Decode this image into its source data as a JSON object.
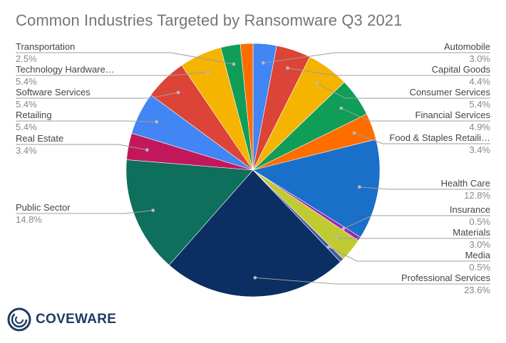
{
  "chart_data": {
    "type": "pie",
    "title": "Common Industries Targeted by Ransomware Q3 2021",
    "slices": [
      {
        "label": "Automobile",
        "value": 3.0,
        "display": "3.0%",
        "color": "#4285f4"
      },
      {
        "label": "Capital Goods",
        "value": 4.4,
        "display": "4.4%",
        "color": "#db4437"
      },
      {
        "label": "Consumer Services",
        "value": 5.4,
        "display": "5.4%",
        "color": "#f4b400"
      },
      {
        "label": "Financial Services",
        "value": 4.9,
        "display": "4.9%",
        "color": "#0f9d58"
      },
      {
        "label": "Food & Staples Retaili…",
        "value": 3.4,
        "display": "3.4%",
        "color": "#ff6d00"
      },
      {
        "label": "Health Care",
        "value": 12.8,
        "display": "12.8%",
        "color": "#1a6fc9"
      },
      {
        "label": "Insurance",
        "value": 0.5,
        "display": "0.5%",
        "color": "#9c27b0"
      },
      {
        "label": "Materials",
        "value": 3.0,
        "display": "3.0%",
        "color": "#c0ca33"
      },
      {
        "label": "Media",
        "value": 0.5,
        "display": "0.5%",
        "color": "#3f5ba9"
      },
      {
        "label": "Professional Services",
        "value": 23.6,
        "display": "23.6%",
        "color": "#0b2e63"
      },
      {
        "label": "Public Sector",
        "value": 14.8,
        "display": "14.8%",
        "color": "#0e6f5c"
      },
      {
        "label": "Real Estate",
        "value": 3.4,
        "display": "3.4%",
        "color": "#c2185b"
      },
      {
        "label": "Retailing",
        "value": 5.4,
        "display": "5.4%",
        "color": "#4285f4"
      },
      {
        "label": "Software Services",
        "value": 5.4,
        "display": "5.4%",
        "color": "#db4437"
      },
      {
        "label": "Technology Hardware…",
        "value": 5.4,
        "display": "5.4%",
        "color": "#f4b400"
      },
      {
        "label": "Transportation",
        "value": 2.5,
        "display": "2.5%",
        "color": "#0f9d58"
      },
      {
        "label": "",
        "value": 1.6,
        "display": "",
        "color": "#ff6d00"
      }
    ],
    "legend": "none"
  },
  "logo": {
    "text": "COVEWARE",
    "color": "#1f3a63"
  }
}
